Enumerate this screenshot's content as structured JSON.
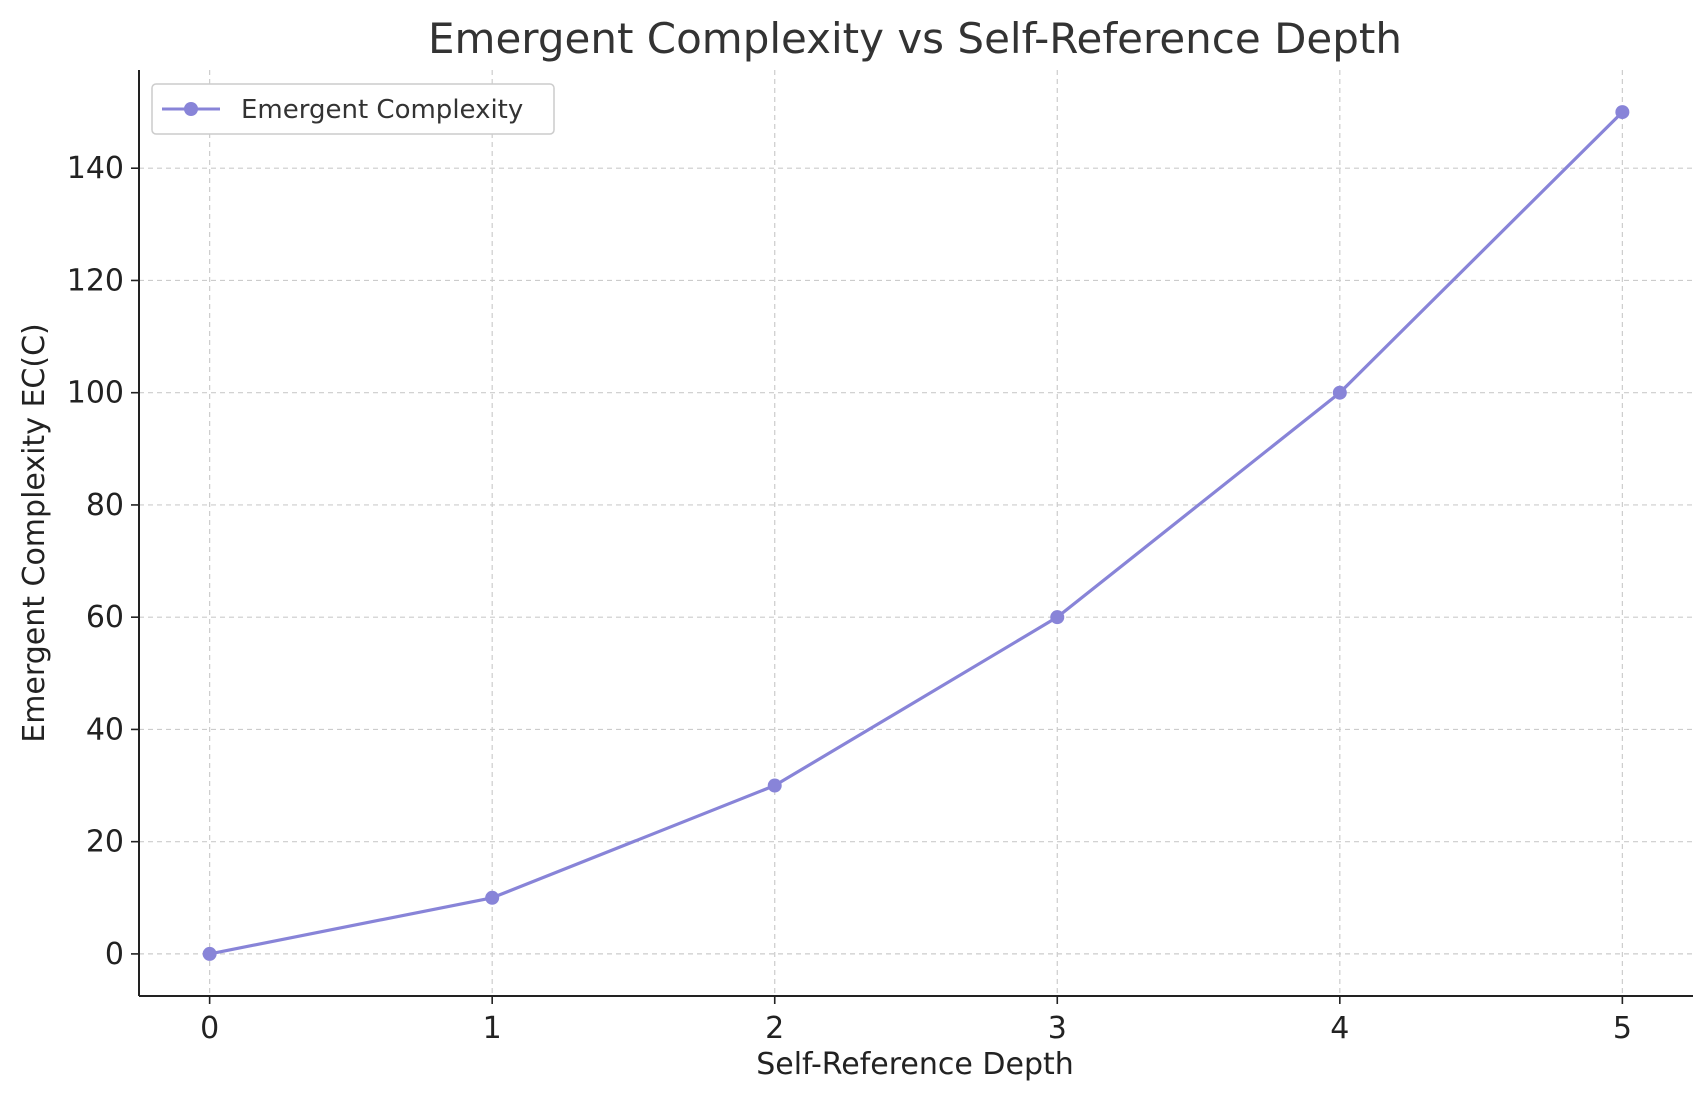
{
  "chart_data": {
    "type": "line",
    "title": "Emergent Complexity vs Self-Reference Depth",
    "xlabel": "Self-Reference Depth",
    "ylabel": "Emergent Complexity EC(C)",
    "x": [
      0,
      1,
      2,
      3,
      4,
      5
    ],
    "series": [
      {
        "name": "Emergent Complexity",
        "values": [
          0,
          10,
          30,
          60,
          100,
          150
        ],
        "color": "#8884d8",
        "marker": "circle"
      }
    ],
    "xlim": [
      -0.25,
      5.25
    ],
    "ylim": [
      -7.5,
      157.5
    ],
    "xticks": [
      "0",
      "1",
      "2",
      "3",
      "4",
      "5"
    ],
    "yticks": [
      "0",
      "20",
      "40",
      "60",
      "80",
      "100",
      "120",
      "140"
    ],
    "grid": true,
    "legend": "upper-left"
  }
}
